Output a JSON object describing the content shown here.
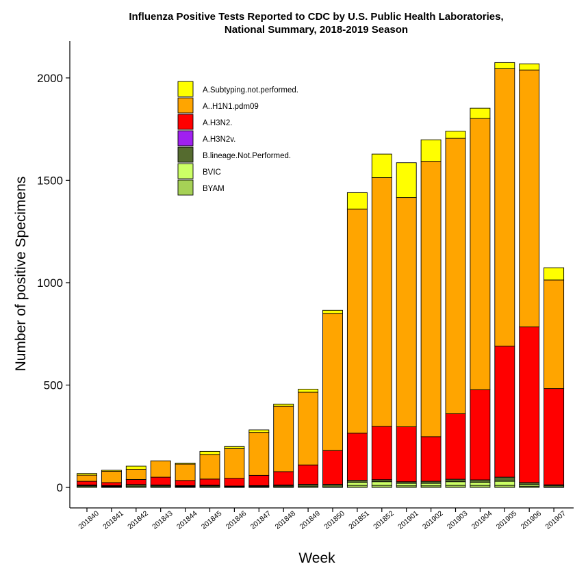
{
  "chart_data": {
    "type": "bar",
    "stacked": true,
    "title_line1": "Influenza Positive Tests Reported to CDC by U.S. Public Health Laboratories,",
    "title_line2": "National Summary, 2018-2019 Season",
    "xlabel": "Week",
    "ylabel": "Number of positive Specimens",
    "ylim": [
      -100,
      2180
    ],
    "yticks": [
      0,
      500,
      1000,
      1500,
      2000
    ],
    "grid": false,
    "legend_position": "top-left",
    "categories": [
      "201840",
      "201841",
      "201842",
      "201843",
      "201844",
      "201845",
      "201846",
      "201847",
      "201848",
      "201849",
      "201850",
      "201851",
      "201852",
      "201901",
      "201902",
      "201903",
      "201904",
      "201905",
      "201906",
      "201907"
    ],
    "series": [
      {
        "name": "BYAM",
        "color": "#a6d156",
        "values": [
          5,
          3,
          5,
          4,
          3,
          4,
          2,
          2,
          4,
          5,
          4,
          10,
          10,
          8,
          8,
          10,
          10,
          10,
          6,
          3
        ]
      },
      {
        "name": "BVIC",
        "color": "#ccff66",
        "values": [
          4,
          3,
          5,
          4,
          3,
          4,
          2,
          3,
          4,
          5,
          6,
          15,
          18,
          12,
          12,
          18,
          15,
          20,
          8,
          5
        ]
      },
      {
        "name": "B.lineage.Not.Performed.",
        "color": "#556b2f",
        "values": [
          3,
          3,
          4,
          4,
          3,
          3,
          3,
          4,
          4,
          5,
          5,
          10,
          10,
          8,
          10,
          12,
          12,
          20,
          10,
          5
        ]
      },
      {
        "name": "A.H3N2v.",
        "color": "#a020f0",
        "values": [
          0,
          0,
          0,
          0,
          0,
          0,
          0,
          0,
          0,
          0,
          0,
          0,
          0,
          0,
          0,
          0,
          0,
          0,
          0,
          0
        ]
      },
      {
        "name": "A.H3N2.",
        "color": "#ff0000",
        "values": [
          18,
          15,
          25,
          38,
          25,
          30,
          38,
          50,
          65,
          95,
          165,
          230,
          260,
          268,
          218,
          320,
          440,
          640,
          760,
          470
        ]
      },
      {
        "name": "A..H1N1.pdm09",
        "color": "#ffa500",
        "values": [
          30,
          55,
          50,
          80,
          80,
          120,
          145,
          210,
          320,
          355,
          670,
          1095,
          1215,
          1120,
          1345,
          1345,
          1325,
          1355,
          1255,
          530
        ]
      },
      {
        "name": "A.Subtyping.not.performed.",
        "color": "#ffff00",
        "values": [
          8,
          5,
          15,
          0,
          5,
          15,
          10,
          12,
          10,
          15,
          15,
          80,
          115,
          170,
          105,
          35,
          50,
          30,
          30,
          60
        ]
      }
    ]
  }
}
